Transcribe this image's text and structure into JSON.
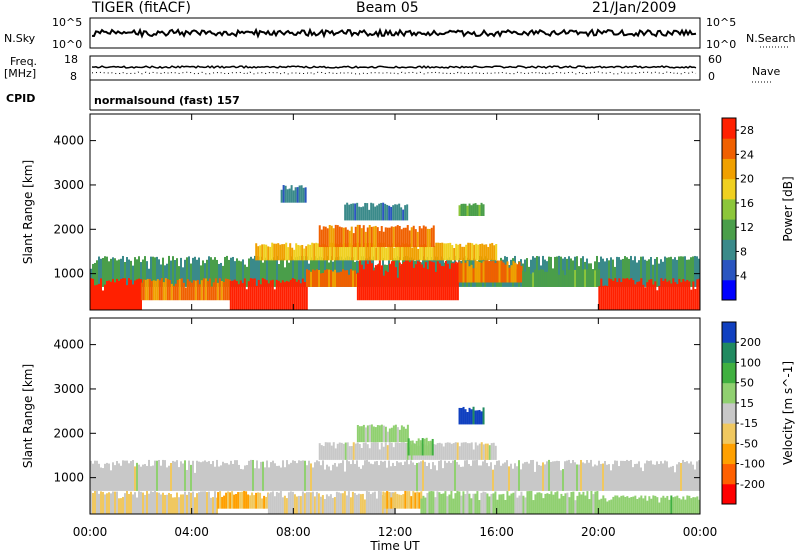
{
  "header": {
    "radar": "TIGER (fitACF)",
    "beam": "Beam 05",
    "date": "21/Jan/2009"
  },
  "strip_panels": {
    "nsky_label": "N.Sky",
    "nsearch_label": "N.Search",
    "nsky_ticks": [
      "10^5",
      "10^0"
    ],
    "nsearch_ticks": [
      "10^5",
      "10^0"
    ],
    "freq_label": "Freq.",
    "freq_unit": "[MHz]",
    "freq_ticks": [
      "18",
      "8"
    ],
    "nave_label": "Nave",
    "nave_ticks": [
      "60",
      "0"
    ],
    "cpid_label": "CPID",
    "cpid_value": "normalsound (fast) 157"
  },
  "chart_data": [
    {
      "type": "heatmap",
      "title": "",
      "xlabel": "",
      "ylabel": "Slant Range [km]",
      "x_ticks": [
        "00:00",
        "04:00",
        "08:00",
        "12:00",
        "16:00",
        "20:00",
        "00:00"
      ],
      "y_ticks": [
        1000,
        2000,
        3000,
        4000
      ],
      "ylim": [
        180,
        4600
      ],
      "xlim_hours": [
        0,
        24
      ],
      "colorbar": {
        "label": "Power [dB]",
        "ticks": [
          4,
          8,
          12,
          16,
          20,
          24,
          28
        ],
        "range": [
          0,
          30
        ],
        "colors": [
          "#0000ff",
          "#2a55c0",
          "#3a8a8a",
          "#4a9e4a",
          "#8cc63a",
          "#f0d020",
          "#f0a000",
          "#f06000",
          "#ff2000"
        ]
      },
      "regions": [
        {
          "t0": 0.0,
          "t1": 24.0,
          "r0": 700,
          "r1": 1400,
          "value": 10
        },
        {
          "t0": 0.0,
          "t1": 2.0,
          "r0": 180,
          "r1": 900,
          "value": 30
        },
        {
          "t0": 2.0,
          "t1": 5.5,
          "r0": 400,
          "r1": 900,
          "value": 24
        },
        {
          "t0": 5.5,
          "t1": 8.5,
          "r0": 180,
          "r1": 900,
          "value": 30
        },
        {
          "t0": 8.5,
          "t1": 10.5,
          "r0": 700,
          "r1": 1100,
          "value": 24
        },
        {
          "t0": 10.5,
          "t1": 14.5,
          "r0": 400,
          "r1": 1300,
          "value": 30
        },
        {
          "t0": 14.5,
          "t1": 17.0,
          "r0": 800,
          "r1": 1300,
          "value": 24
        },
        {
          "t0": 17.0,
          "t1": 20.0,
          "r0": 700,
          "r1": 1100,
          "value": 12
        },
        {
          "t0": 20.0,
          "t1": 24.0,
          "r0": 180,
          "r1": 900,
          "value": 30
        },
        {
          "t0": 6.5,
          "t1": 16.0,
          "r0": 1300,
          "r1": 1700,
          "value": 20
        },
        {
          "t0": 9.0,
          "t1": 13.5,
          "r0": 1600,
          "r1": 2100,
          "value": 24
        },
        {
          "t0": 10.0,
          "t1": 12.5,
          "r0": 2200,
          "r1": 2600,
          "value": 8
        },
        {
          "t0": 14.5,
          "t1": 15.5,
          "r0": 2300,
          "r1": 2600,
          "value": 12
        },
        {
          "t0": 7.5,
          "t1": 8.5,
          "r0": 2600,
          "r1": 3000,
          "value": 8
        }
      ]
    },
    {
      "type": "heatmap",
      "title": "",
      "xlabel": "Time UT",
      "ylabel": "Slant Range [km]",
      "x_ticks": [
        "00:00",
        "04:00",
        "08:00",
        "12:00",
        "16:00",
        "20:00",
        "00:00"
      ],
      "y_ticks": [
        1000,
        2000,
        3000,
        4000
      ],
      "ylim": [
        180,
        4600
      ],
      "xlim_hours": [
        0,
        24
      ],
      "colorbar": {
        "label": "Velocity [m s^-1]",
        "ticks": [
          200,
          100,
          50,
          15,
          -15,
          -50,
          -100,
          -200
        ],
        "range": [
          -250,
          250
        ],
        "colors": [
          "#ff0000",
          "#ff6000",
          "#ffa000",
          "#f0c860",
          "#c8c8c8",
          "#90d070",
          "#40b040",
          "#208a60",
          "#1040c0"
        ]
      },
      "regions": [
        {
          "t0": 0.0,
          "t1": 24.0,
          "r0": 700,
          "r1": 1400,
          "value": 0
        },
        {
          "t0": 0.0,
          "t1": 5.0,
          "r0": 180,
          "r1": 700,
          "value": -30
        },
        {
          "t0": 5.0,
          "t1": 7.0,
          "r0": 300,
          "r1": 700,
          "value": -80
        },
        {
          "t0": 7.0,
          "t1": 12.0,
          "r0": 180,
          "r1": 700,
          "value": -15
        },
        {
          "t0": 11.5,
          "t1": 13.0,
          "r0": 300,
          "r1": 700,
          "value": -80
        },
        {
          "t0": 13.0,
          "t1": 20.0,
          "r0": 180,
          "r1": 700,
          "value": 40
        },
        {
          "t0": 20.0,
          "t1": 24.0,
          "r0": 180,
          "r1": 600,
          "value": 60
        },
        {
          "t0": 9.0,
          "t1": 16.0,
          "r0": 1400,
          "r1": 1800,
          "value": 0
        },
        {
          "t0": 10.5,
          "t1": 12.5,
          "r0": 1800,
          "r1": 2200,
          "value": 40
        },
        {
          "t0": 14.5,
          "t1": 15.5,
          "r0": 2200,
          "r1": 2600,
          "value": 220
        },
        {
          "t0": 12.5,
          "t1": 13.5,
          "r0": 1500,
          "r1": 1900,
          "value": 70
        }
      ]
    }
  ]
}
